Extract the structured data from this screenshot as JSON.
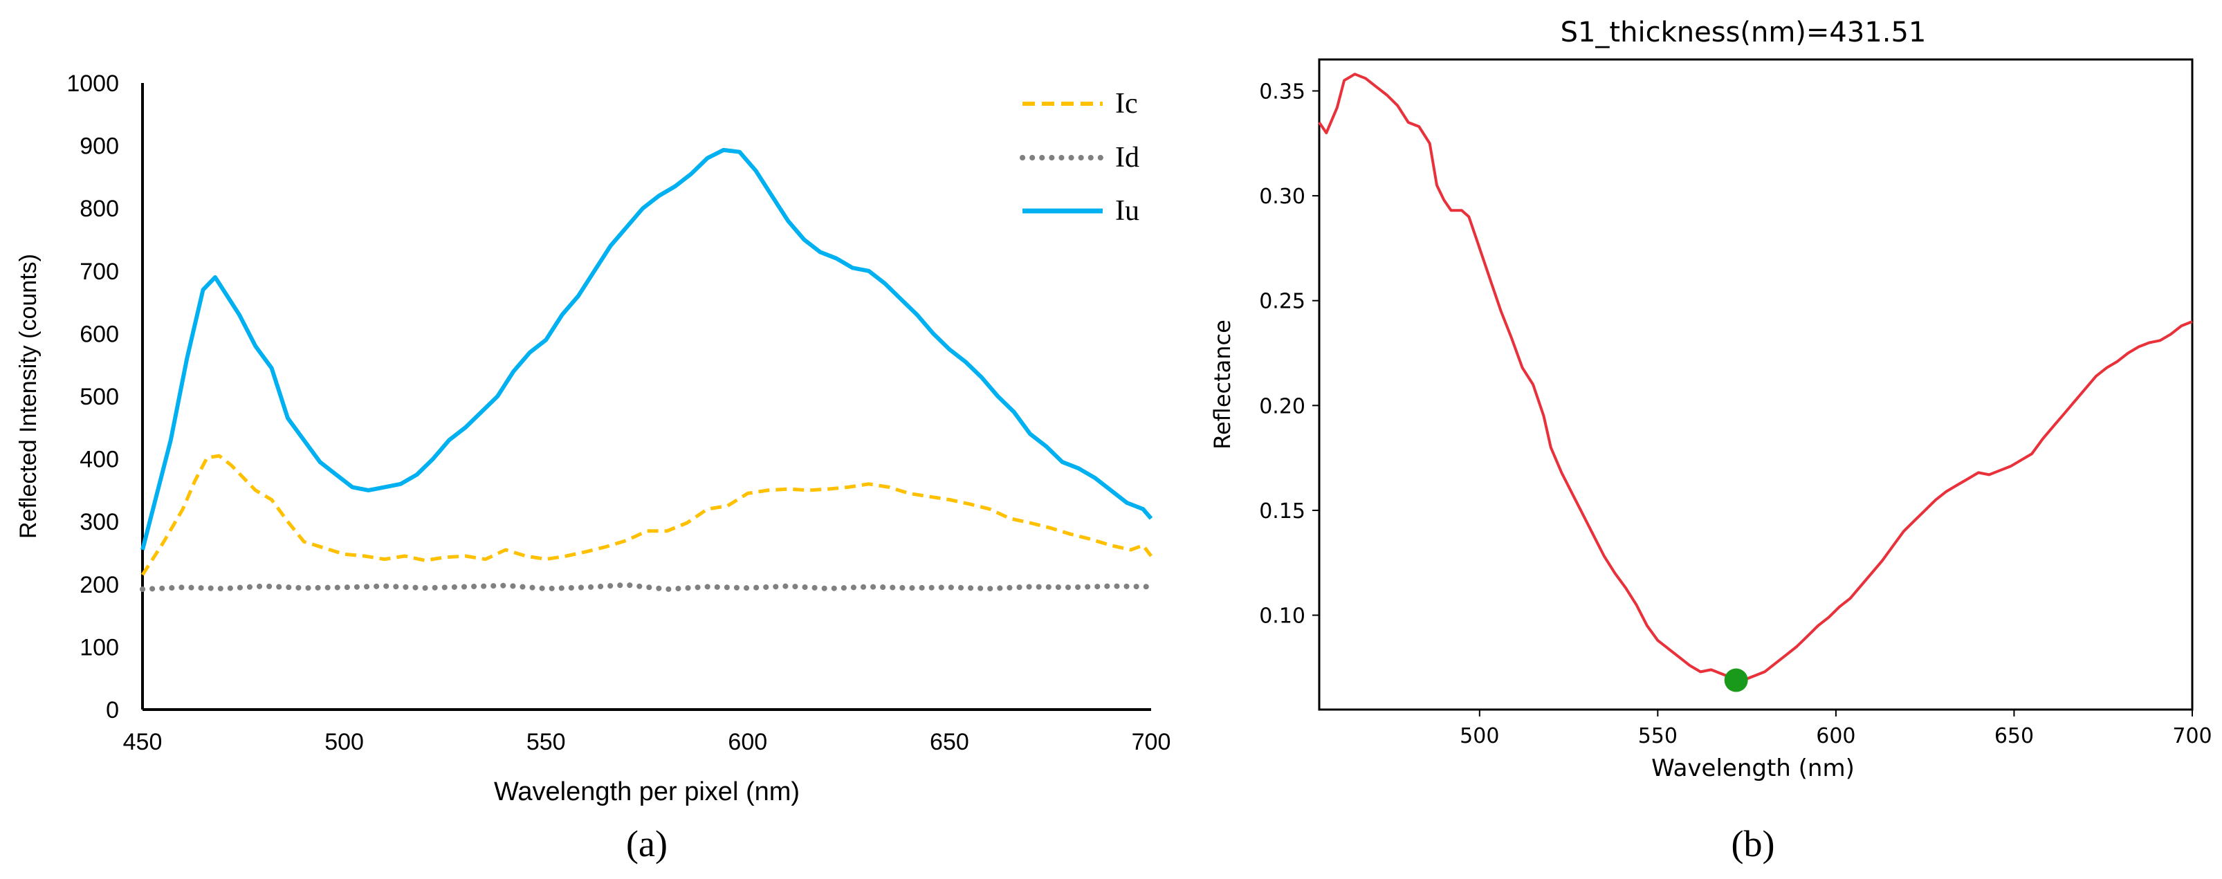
{
  "figure": {
    "caption_a": "(a)",
    "caption_b": "(b)"
  },
  "chart_data": [
    {
      "id": "a",
      "type": "line",
      "title": "",
      "xlabel": "Wavelength per pixel (nm)",
      "ylabel": "Reflected Intensity (counts)",
      "xlim": [
        450,
        700
      ],
      "ylim": [
        0,
        1000
      ],
      "xticks": [
        450,
        500,
        550,
        600,
        650,
        700
      ],
      "yticks": [
        0,
        100,
        200,
        300,
        400,
        500,
        600,
        700,
        800,
        900,
        1000
      ],
      "legend_position": "top-right",
      "series": [
        {
          "name": "Ic",
          "style": "dashed",
          "color": "#FFC000",
          "x": [
            450,
            455,
            460,
            463,
            466,
            469,
            472,
            475,
            478,
            482,
            486,
            490,
            495,
            500,
            505,
            510,
            515,
            520,
            525,
            530,
            535,
            540,
            545,
            550,
            555,
            560,
            565,
            570,
            575,
            580,
            585,
            590,
            595,
            600,
            605,
            610,
            615,
            620,
            625,
            630,
            635,
            640,
            645,
            650,
            655,
            660,
            665,
            670,
            675,
            680,
            685,
            690,
            695,
            698,
            700
          ],
          "values": [
            215,
            265,
            320,
            365,
            402,
            405,
            390,
            370,
            350,
            335,
            300,
            268,
            258,
            248,
            245,
            240,
            245,
            238,
            243,
            245,
            240,
            255,
            245,
            240,
            245,
            252,
            260,
            270,
            285,
            285,
            298,
            320,
            325,
            345,
            350,
            352,
            350,
            352,
            355,
            360,
            355,
            345,
            340,
            335,
            328,
            320,
            305,
            298,
            290,
            280,
            272,
            262,
            255,
            262,
            245
          ]
        },
        {
          "name": "Id",
          "style": "dotted",
          "color": "#808080",
          "x": [
            450,
            460,
            470,
            480,
            490,
            500,
            510,
            520,
            530,
            540,
            550,
            560,
            570,
            580,
            590,
            600,
            610,
            620,
            630,
            640,
            650,
            660,
            670,
            680,
            690,
            700
          ],
          "values": [
            192,
            195,
            193,
            197,
            194,
            195,
            197,
            194,
            196,
            198,
            193,
            195,
            199,
            192,
            196,
            194,
            197,
            193,
            196,
            194,
            195,
            193,
            196,
            195,
            197,
            196
          ]
        },
        {
          "name": "Iu",
          "style": "solid",
          "color": "#00B0F0",
          "x": [
            450,
            453,
            457,
            461,
            465,
            468,
            471,
            474,
            478,
            482,
            486,
            490,
            494,
            498,
            502,
            506,
            510,
            514,
            518,
            522,
            526,
            530,
            534,
            538,
            542,
            546,
            550,
            554,
            558,
            562,
            566,
            570,
            574,
            578,
            582,
            586,
            590,
            594,
            598,
            602,
            606,
            610,
            614,
            618,
            622,
            626,
            630,
            634,
            638,
            642,
            646,
            650,
            654,
            658,
            662,
            666,
            670,
            674,
            678,
            682,
            686,
            690,
            694,
            698,
            700
          ],
          "values": [
            255,
            330,
            430,
            560,
            670,
            690,
            660,
            630,
            580,
            545,
            465,
            430,
            395,
            375,
            355,
            350,
            355,
            360,
            375,
            400,
            430,
            450,
            475,
            500,
            540,
            570,
            590,
            630,
            660,
            700,
            740,
            770,
            800,
            820,
            835,
            855,
            880,
            893,
            890,
            860,
            820,
            780,
            750,
            730,
            720,
            705,
            700,
            680,
            655,
            630,
            600,
            575,
            555,
            530,
            500,
            475,
            440,
            420,
            395,
            385,
            370,
            350,
            330,
            320,
            305
          ]
        }
      ]
    },
    {
      "id": "b",
      "type": "line",
      "title": "S1_thickness(nm)=431.51",
      "xlabel": "Wavelength (nm)",
      "ylabel": "Reflectance",
      "xlim": [
        455,
        700
      ],
      "ylim": [
        0.055,
        0.365
      ],
      "xticks": [
        500,
        550,
        600,
        650,
        700
      ],
      "yticks": [
        0.1,
        0.15,
        0.2,
        0.25,
        0.3,
        0.35
      ],
      "ytick_labels": [
        "0.10",
        "0.15",
        "0.20",
        "0.25",
        "0.30",
        "0.35"
      ],
      "series": [
        {
          "name": "Reflectance",
          "style": "solid",
          "color": "#E8313A",
          "x": [
            455,
            457,
            460,
            462,
            465,
            468,
            471,
            474,
            477,
            480,
            483,
            486,
            488,
            490,
            492,
            495,
            497,
            500,
            503,
            506,
            509,
            512,
            515,
            518,
            520,
            523,
            526,
            529,
            532,
            535,
            538,
            541,
            544,
            547,
            550,
            553,
            556,
            559,
            562,
            565,
            568,
            571,
            574,
            577,
            580,
            583,
            586,
            589,
            592,
            595,
            598,
            601,
            604,
            607,
            610,
            613,
            616,
            619,
            622,
            625,
            628,
            631,
            634,
            637,
            640,
            643,
            646,
            649,
            652,
            655,
            658,
            661,
            664,
            667,
            670,
            673,
            676,
            679,
            682,
            685,
            688,
            691,
            694,
            697,
            700
          ],
          "values": [
            0.335,
            0.33,
            0.342,
            0.355,
            0.358,
            0.356,
            0.352,
            0.348,
            0.343,
            0.335,
            0.333,
            0.325,
            0.305,
            0.298,
            0.293,
            0.293,
            0.29,
            0.275,
            0.26,
            0.245,
            0.232,
            0.218,
            0.21,
            0.195,
            0.18,
            0.168,
            0.158,
            0.148,
            0.138,
            0.128,
            0.12,
            0.113,
            0.105,
            0.095,
            0.088,
            0.084,
            0.08,
            0.076,
            0.073,
            0.074,
            0.072,
            0.07,
            0.069,
            0.071,
            0.073,
            0.077,
            0.081,
            0.085,
            0.09,
            0.095,
            0.099,
            0.104,
            0.108,
            0.114,
            0.12,
            0.126,
            0.133,
            0.14,
            0.145,
            0.15,
            0.155,
            0.159,
            0.162,
            0.165,
            0.168,
            0.167,
            0.169,
            0.171,
            0.174,
            0.177,
            0.184,
            0.19,
            0.196,
            0.202,
            0.208,
            0.214,
            0.218,
            0.221,
            0.225,
            0.228,
            0.23,
            0.231,
            0.234,
            0.238,
            0.24
          ]
        }
      ],
      "marker": {
        "x": 572,
        "y": 0.069,
        "color": "#1A9A1A"
      }
    }
  ]
}
